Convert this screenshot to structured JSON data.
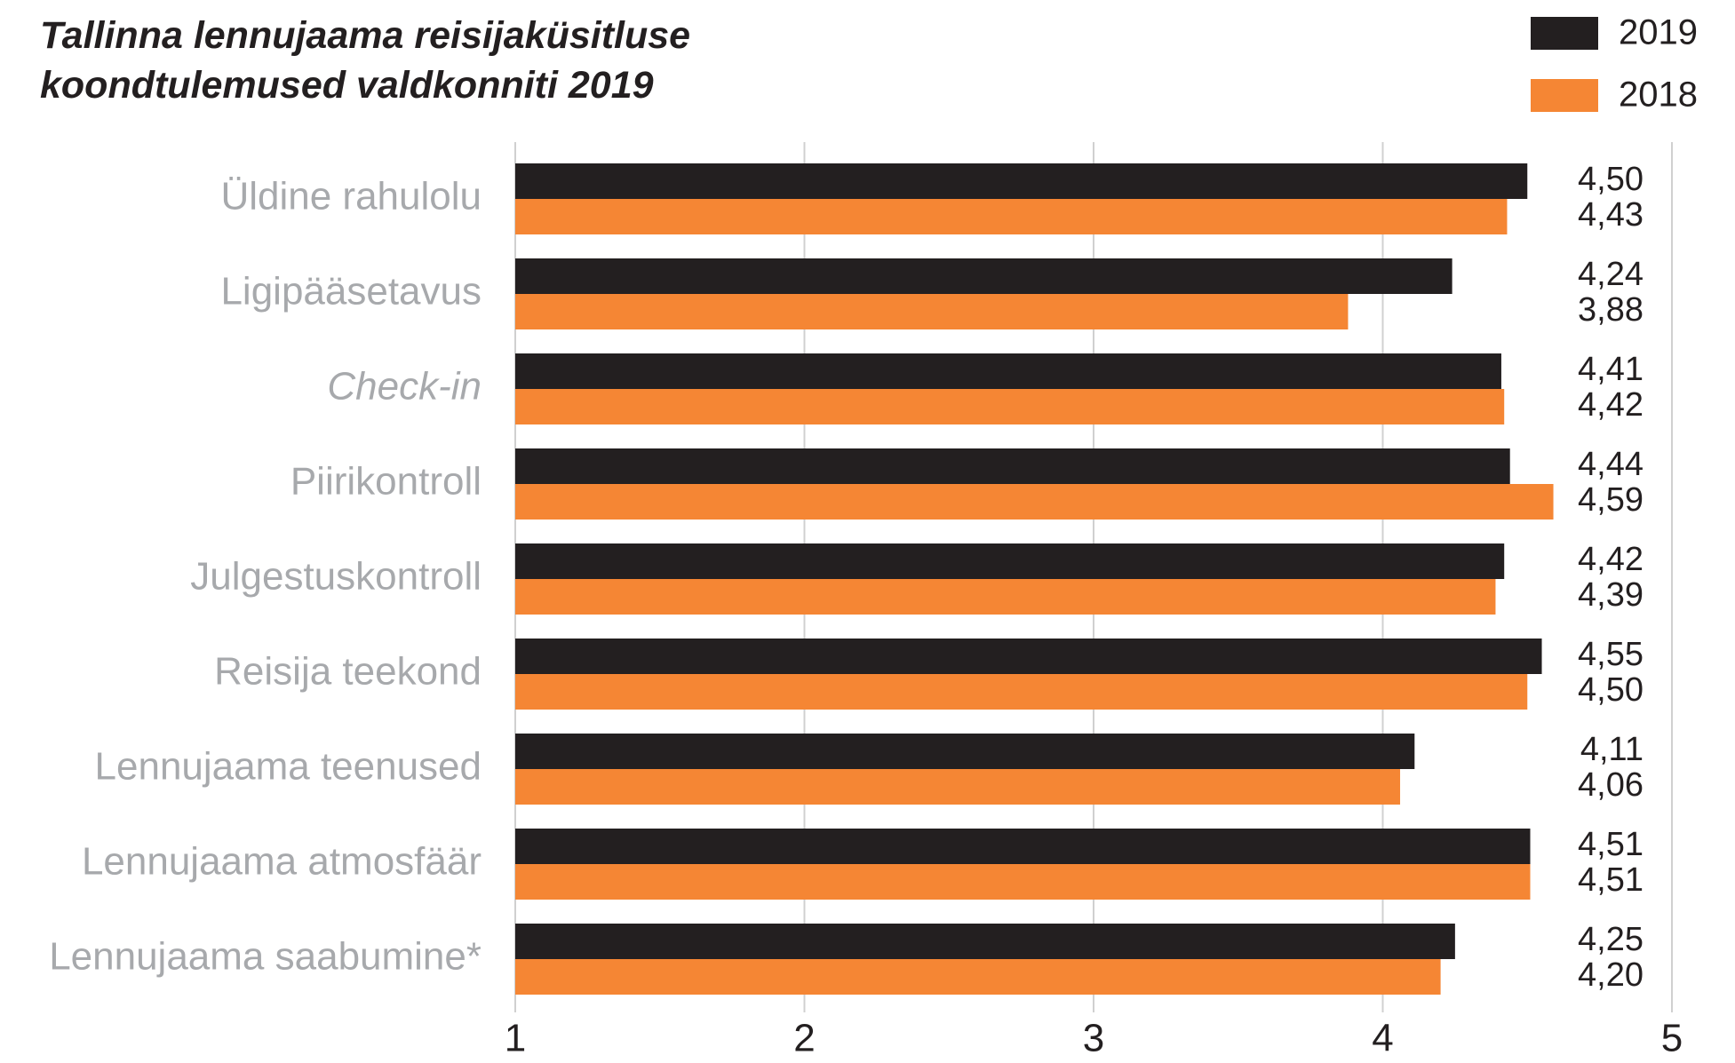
{
  "chart_data": {
    "type": "bar",
    "orientation": "horizontal",
    "title": "Tallinna lennujaama reisijaküsitluse koondtulemused valdkonniti 2019",
    "categories": [
      "Üldine rahulolu",
      "Ligipääsetavus",
      "Check-in",
      "Piirikontroll",
      "Julgestuskontroll",
      "Reisija teekond",
      "Lennujaama teenused",
      "Lennujaama atmosfäär",
      "Lennujaama saabumine*"
    ],
    "series": [
      {
        "name": "2019",
        "color": "#231f20",
        "values": [
          4.5,
          4.24,
          4.41,
          4.44,
          4.42,
          4.55,
          4.11,
          4.51,
          4.25
        ],
        "value_labels": [
          "4,50",
          "4,24",
          "4,41",
          "4,44",
          "4,42",
          "4,55",
          "4,11",
          "4,51",
          "4,25"
        ]
      },
      {
        "name": "2018",
        "color": "#f58634",
        "values": [
          4.43,
          3.88,
          4.42,
          4.59,
          4.39,
          4.5,
          4.06,
          4.51,
          4.2
        ],
        "value_labels": [
          "4,43",
          "3,88",
          "4,42",
          "4,59",
          "4,39",
          "4,50",
          "4,06",
          "4,51",
          "4,20"
        ]
      }
    ],
    "xlim": [
      1,
      5
    ],
    "xticks": [
      1,
      2,
      3,
      4,
      5
    ],
    "grid": true,
    "legend": "top-right"
  }
}
